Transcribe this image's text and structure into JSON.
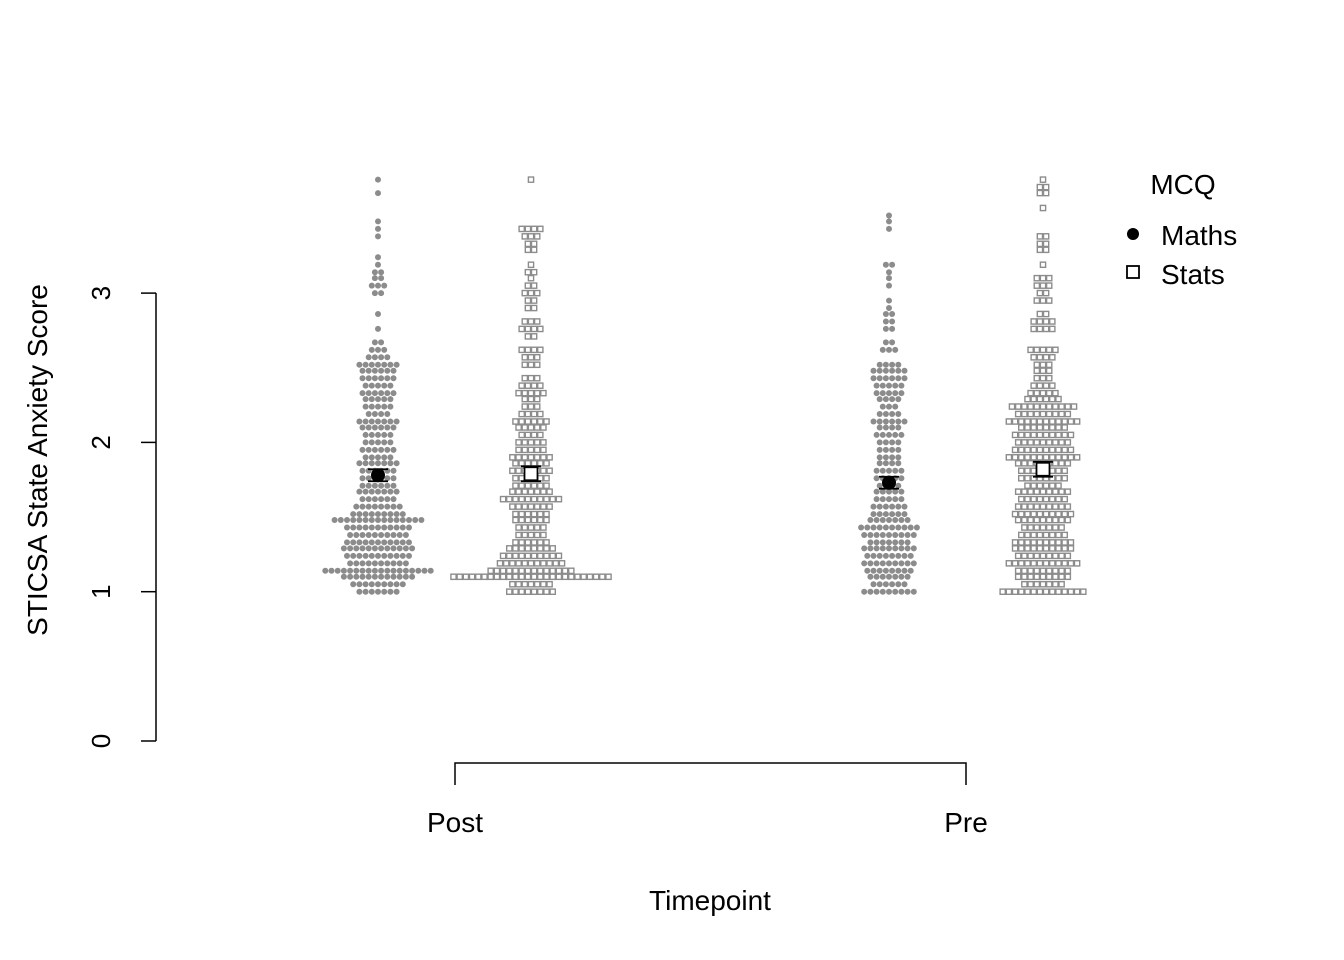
{
  "chart_data": {
    "type": "scatter",
    "subtype": "beeswarm with means and error bars",
    "xlabel": "Timepoint",
    "ylabel": "STICSA State Anxiety Score",
    "categories": [
      "Post",
      "Pre"
    ],
    "ylim": [
      0,
      3.8
    ],
    "yticks": [
      0,
      1,
      2,
      3
    ],
    "grid": false,
    "legend": {
      "title": "MCQ",
      "placement": "top-right",
      "entries": [
        {
          "label": "Maths",
          "marker": "filled-circle"
        },
        {
          "label": "Stats",
          "marker": "open-square"
        }
      ]
    },
    "colors": {
      "points_maths": "#8c8c8c",
      "points_stats": "#8c8c8c",
      "mean_marker": "#000000",
      "axis": "#000000"
    },
    "series": [
      {
        "name": "Maths",
        "summary": [
          {
            "category": "Post",
            "mean": 1.78,
            "ci_low": 1.74,
            "ci_high": 1.82
          },
          {
            "category": "Pre",
            "mean": 1.73,
            "ci_low": 1.69,
            "ci_high": 1.77
          }
        ],
        "distribution": {
          "Post": [
            [
              1.0,
              7
            ],
            [
              1.05,
              9
            ],
            [
              1.1,
              12
            ],
            [
              1.14,
              18
            ],
            [
              1.19,
              10
            ],
            [
              1.24,
              11
            ],
            [
              1.29,
              12
            ],
            [
              1.33,
              11
            ],
            [
              1.38,
              10
            ],
            [
              1.43,
              11
            ],
            [
              1.48,
              15
            ],
            [
              1.52,
              9
            ],
            [
              1.57,
              8
            ],
            [
              1.62,
              6
            ],
            [
              1.67,
              7
            ],
            [
              1.71,
              6
            ],
            [
              1.76,
              6
            ],
            [
              1.81,
              6
            ],
            [
              1.86,
              7
            ],
            [
              1.9,
              5
            ],
            [
              1.95,
              6
            ],
            [
              2.0,
              5
            ],
            [
              2.05,
              5
            ],
            [
              2.1,
              6
            ],
            [
              2.14,
              7
            ],
            [
              2.19,
              4
            ],
            [
              2.24,
              5
            ],
            [
              2.29,
              5
            ],
            [
              2.33,
              6
            ],
            [
              2.38,
              5
            ],
            [
              2.43,
              6
            ],
            [
              2.48,
              6
            ],
            [
              2.52,
              7
            ],
            [
              2.57,
              4
            ],
            [
              2.62,
              3
            ],
            [
              2.67,
              2
            ],
            [
              2.76,
              1
            ],
            [
              2.86,
              1
            ],
            [
              3.0,
              2
            ],
            [
              3.05,
              3
            ],
            [
              3.1,
              2
            ],
            [
              3.14,
              2
            ],
            [
              3.19,
              1
            ],
            [
              3.24,
              1
            ],
            [
              3.38,
              1
            ],
            [
              3.43,
              1
            ],
            [
              3.48,
              1
            ],
            [
              3.67,
              1
            ],
            [
              3.76,
              1
            ]
          ],
          "Pre": [
            [
              1.0,
              9
            ],
            [
              1.05,
              6
            ],
            [
              1.1,
              7
            ],
            [
              1.14,
              8
            ],
            [
              1.19,
              9
            ],
            [
              1.24,
              8
            ],
            [
              1.29,
              9
            ],
            [
              1.33,
              7
            ],
            [
              1.38,
              9
            ],
            [
              1.43,
              10
            ],
            [
              1.48,
              7
            ],
            [
              1.52,
              6
            ],
            [
              1.57,
              6
            ],
            [
              1.62,
              5
            ],
            [
              1.67,
              5
            ],
            [
              1.71,
              4
            ],
            [
              1.76,
              5
            ],
            [
              1.81,
              5
            ],
            [
              1.86,
              4
            ],
            [
              1.9,
              4
            ],
            [
              1.95,
              4
            ],
            [
              2.0,
              4
            ],
            [
              2.05,
              5
            ],
            [
              2.1,
              4
            ],
            [
              2.14,
              6
            ],
            [
              2.19,
              4
            ],
            [
              2.24,
              3
            ],
            [
              2.29,
              4
            ],
            [
              2.33,
              5
            ],
            [
              2.38,
              5
            ],
            [
              2.43,
              6
            ],
            [
              2.48,
              6
            ],
            [
              2.52,
              4
            ],
            [
              2.62,
              3
            ],
            [
              2.67,
              2
            ],
            [
              2.76,
              2
            ],
            [
              2.81,
              2
            ],
            [
              2.86,
              2
            ],
            [
              2.9,
              1
            ],
            [
              2.95,
              1
            ],
            [
              3.05,
              1
            ],
            [
              3.1,
              1
            ],
            [
              3.14,
              1
            ],
            [
              3.19,
              2
            ],
            [
              3.43,
              1
            ],
            [
              3.48,
              1
            ],
            [
              3.52,
              1
            ]
          ]
        }
      },
      {
        "name": "Stats",
        "summary": [
          {
            "category": "Post",
            "mean": 1.79,
            "ci_low": 1.74,
            "ci_high": 1.84
          },
          {
            "category": "Pre",
            "mean": 1.82,
            "ci_low": 1.77,
            "ci_high": 1.87
          }
        ],
        "distribution": {
          "Post": [
            [
              1.0,
              8
            ],
            [
              1.05,
              7
            ],
            [
              1.1,
              26
            ],
            [
              1.14,
              14
            ],
            [
              1.19,
              11
            ],
            [
              1.24,
              10
            ],
            [
              1.29,
              8
            ],
            [
              1.33,
              6
            ],
            [
              1.38,
              5
            ],
            [
              1.43,
              5
            ],
            [
              1.48,
              6
            ],
            [
              1.52,
              6
            ],
            [
              1.57,
              7
            ],
            [
              1.62,
              10
            ],
            [
              1.67,
              7
            ],
            [
              1.71,
              6
            ],
            [
              1.76,
              6
            ],
            [
              1.81,
              7
            ],
            [
              1.86,
              6
            ],
            [
              1.9,
              7
            ],
            [
              1.95,
              5
            ],
            [
              2.0,
              5
            ],
            [
              2.05,
              4
            ],
            [
              2.1,
              5
            ],
            [
              2.14,
              6
            ],
            [
              2.19,
              4
            ],
            [
              2.24,
              3
            ],
            [
              2.29,
              3
            ],
            [
              2.33,
              5
            ],
            [
              2.38,
              4
            ],
            [
              2.43,
              3
            ],
            [
              2.52,
              3
            ],
            [
              2.57,
              3
            ],
            [
              2.62,
              4
            ],
            [
              2.71,
              2
            ],
            [
              2.76,
              4
            ],
            [
              2.81,
              3
            ],
            [
              2.9,
              2
            ],
            [
              2.95,
              2
            ],
            [
              3.0,
              3
            ],
            [
              3.05,
              2
            ],
            [
              3.1,
              1
            ],
            [
              3.14,
              2
            ],
            [
              3.19,
              1
            ],
            [
              3.29,
              2
            ],
            [
              3.33,
              2
            ],
            [
              3.38,
              3
            ],
            [
              3.43,
              4
            ],
            [
              3.76,
              1
            ]
          ],
          "Pre": [
            [
              1.0,
              14
            ],
            [
              1.05,
              7
            ],
            [
              1.1,
              9
            ],
            [
              1.14,
              9
            ],
            [
              1.19,
              12
            ],
            [
              1.24,
              9
            ],
            [
              1.29,
              10
            ],
            [
              1.33,
              10
            ],
            [
              1.38,
              8
            ],
            [
              1.43,
              7
            ],
            [
              1.48,
              9
            ],
            [
              1.52,
              10
            ],
            [
              1.57,
              9
            ],
            [
              1.62,
              8
            ],
            [
              1.67,
              9
            ],
            [
              1.71,
              6
            ],
            [
              1.76,
              8
            ],
            [
              1.81,
              8
            ],
            [
              1.86,
              9
            ],
            [
              1.9,
              12
            ],
            [
              1.95,
              10
            ],
            [
              2.0,
              9
            ],
            [
              2.05,
              10
            ],
            [
              2.1,
              8
            ],
            [
              2.14,
              12
            ],
            [
              2.19,
              9
            ],
            [
              2.24,
              11
            ],
            [
              2.29,
              6
            ],
            [
              2.33,
              5
            ],
            [
              2.38,
              4
            ],
            [
              2.43,
              3
            ],
            [
              2.48,
              3
            ],
            [
              2.52,
              3
            ],
            [
              2.57,
              4
            ],
            [
              2.62,
              5
            ],
            [
              2.76,
              4
            ],
            [
              2.81,
              4
            ],
            [
              2.86,
              2
            ],
            [
              2.95,
              3
            ],
            [
              3.0,
              2
            ],
            [
              3.05,
              3
            ],
            [
              3.1,
              3
            ],
            [
              3.19,
              1
            ],
            [
              3.29,
              2
            ],
            [
              3.33,
              2
            ],
            [
              3.38,
              2
            ],
            [
              3.57,
              1
            ],
            [
              3.67,
              2
            ],
            [
              3.71,
              2
            ],
            [
              3.76,
              1
            ]
          ]
        }
      }
    ]
  }
}
